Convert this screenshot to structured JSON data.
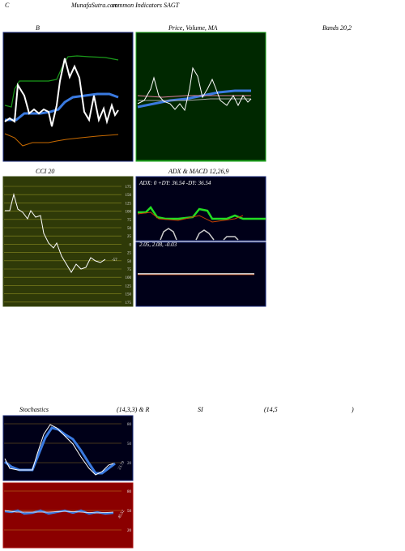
{
  "header": {
    "left": "C",
    "site": "MunafaSutra.com",
    "subtitle": "common Indicators SAGT"
  },
  "panels": {
    "bollinger": {
      "label": "B",
      "right_label": "Bands 20,2"
    },
    "price": {
      "label": "Price, Volume, MA"
    },
    "cci": {
      "label": "CCI 20",
      "axis": [
        "175",
        "150",
        "125",
        "100",
        "75",
        "50",
        "25",
        "0",
        "25",
        "50",
        "75",
        "100",
        "125",
        "150",
        "175"
      ],
      "current": "-57"
    },
    "adx": {
      "label": "ADX  & MACD 12,26,9",
      "readout": "ADX: 0  +DY: 36.54  -DY: 36.54"
    },
    "macd": {
      "readout": "2.05,  2.08,  -0.03"
    },
    "stochastics": {
      "label": "Stochastics",
      "params": "(14,3,3) & R",
      "rsi_label": "SI",
      "rsi_params": "(14,5",
      "close": ")",
      "axis": [
        "80",
        "50",
        "20"
      ],
      "current": "23.79"
    },
    "rsi": {
      "axis": [
        "80",
        "50",
        "20"
      ],
      "current": "45.52"
    }
  },
  "watermark": "MunafaSutra.com"
}
